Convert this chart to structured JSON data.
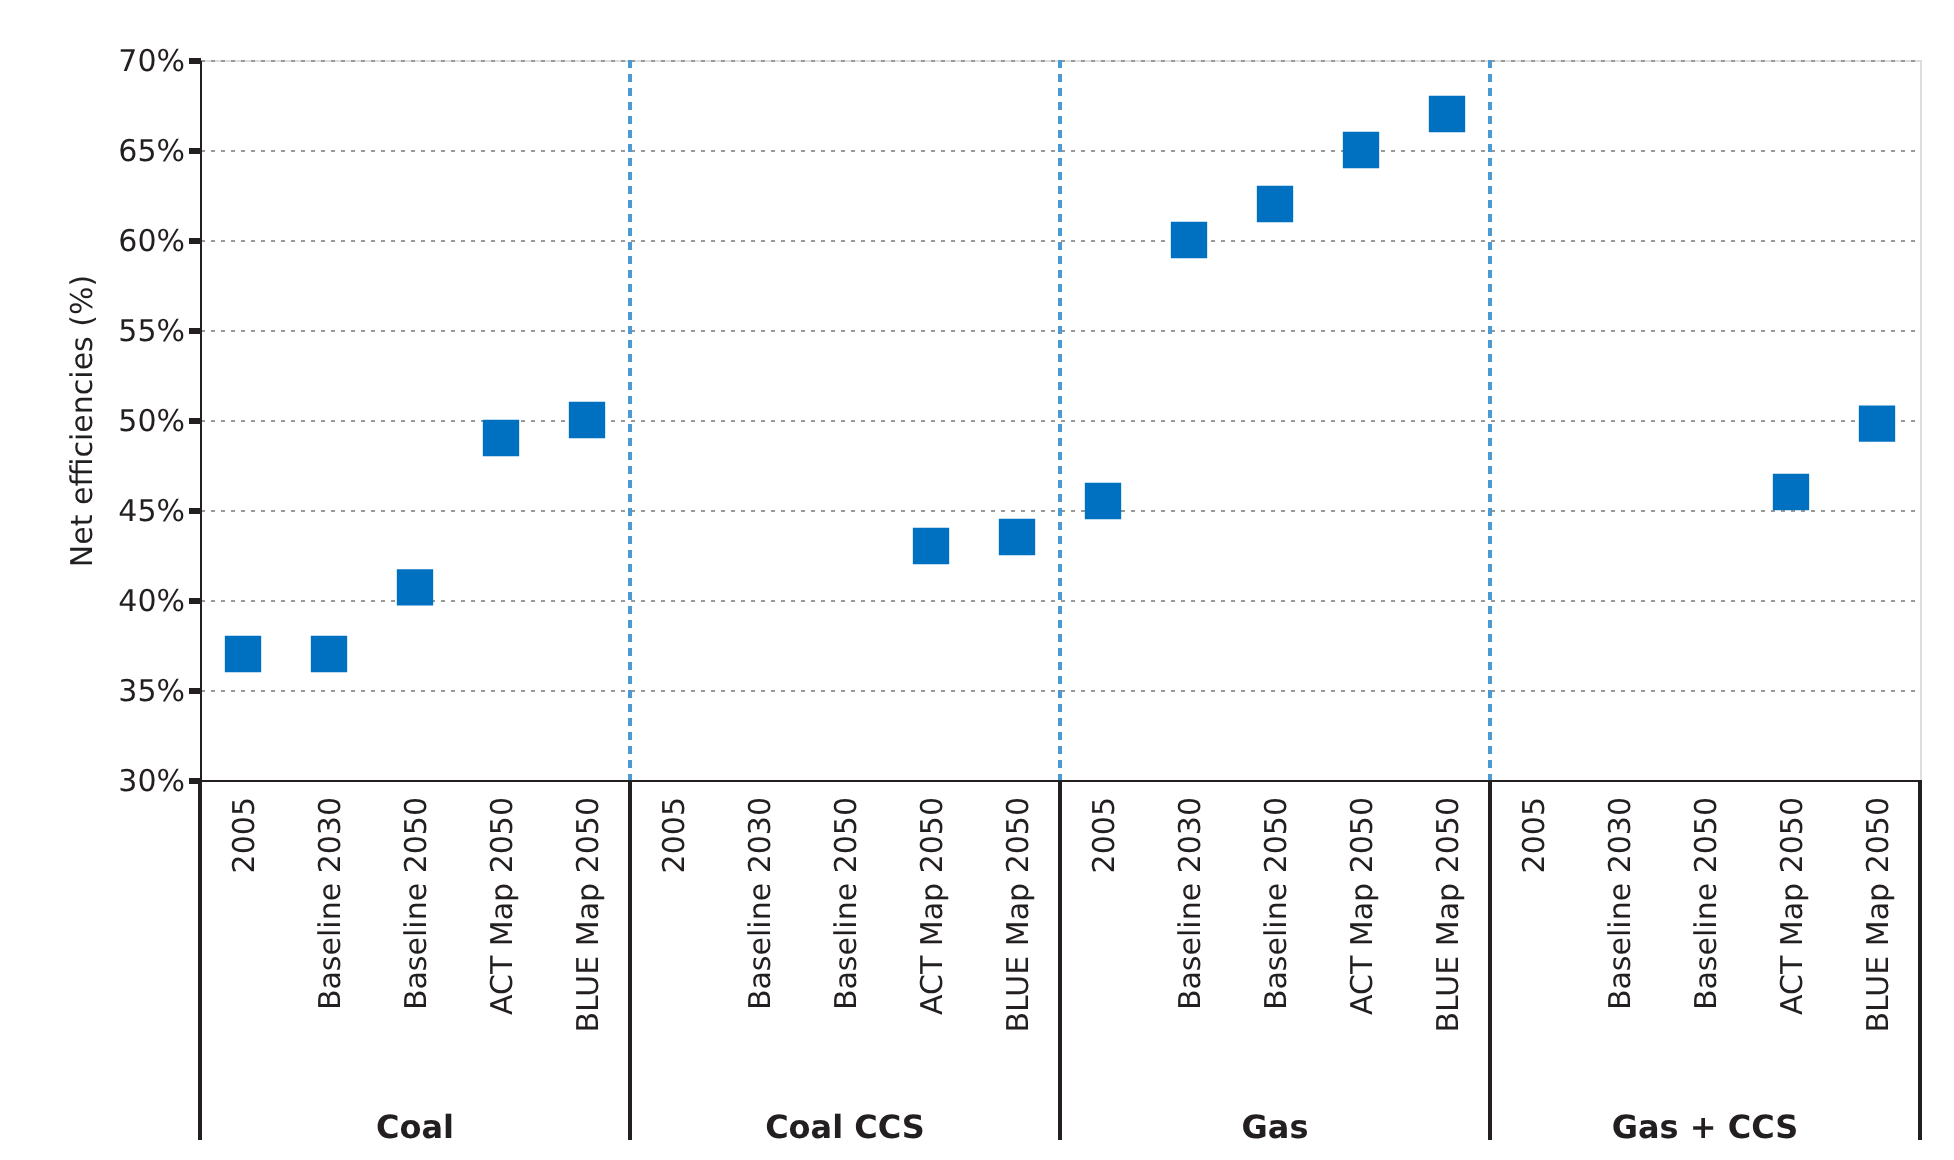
{
  "chart_data": {
    "type": "scatter",
    "ylabel": "Net efficiencies (%)",
    "categories": [
      "2005",
      "Baseline 2030",
      "Baseline 2050",
      "ACT Map 2050",
      "BLUE Map 2050",
      "2005",
      "Baseline 2030",
      "Baseline 2050",
      "ACT Map 2050",
      "BLUE Map 2050",
      "2005",
      "Baseline 2030",
      "Baseline 2050",
      "ACT Map 2050",
      "BLUE Map 2050",
      "2005",
      "Baseline 2030",
      "Baseline 2050",
      "ACT Map 2050",
      "BLUE Map 2050"
    ],
    "series": [
      {
        "color": "#0070c0",
        "values": [
          37,
          37,
          40.7,
          49,
          50,
          null,
          null,
          null,
          43,
          43.5,
          45.5,
          60,
          62,
          65,
          67,
          null,
          null,
          null,
          46,
          49.8
        ]
      }
    ],
    "annotations": [
      "Coal",
      "Coal CCS",
      "Gas",
      "Gas + CCS"
    ],
    "ylim": [
      30,
      70
    ],
    "yticks": [
      {
        "value": 30,
        "label": "30%"
      },
      {
        "value": 35,
        "label": "35%"
      },
      {
        "value": 40,
        "label": "40%"
      },
      {
        "value": 45,
        "label": "45%"
      },
      {
        "value": 50,
        "label": "50%"
      },
      {
        "value": 55,
        "label": "55%"
      },
      {
        "value": 60,
        "label": "60%"
      },
      {
        "value": 65,
        "label": "65%"
      },
      {
        "value": 70,
        "label": "70%"
      }
    ],
    "grid": "y",
    "marker": "square"
  }
}
